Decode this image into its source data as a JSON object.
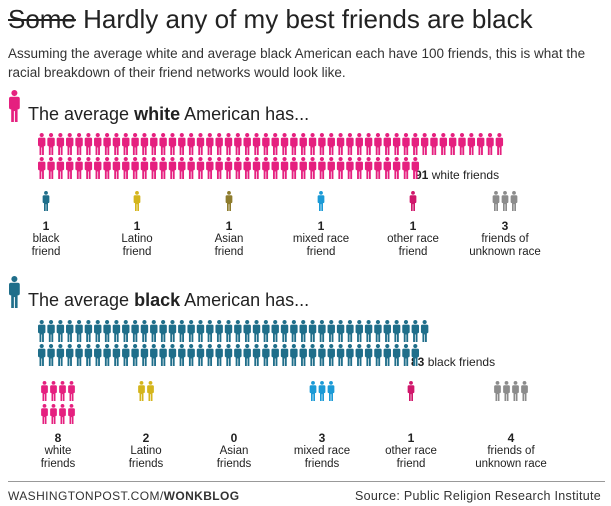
{
  "header": {
    "title_strike": "Some",
    "title_rest": "Hardly any of my best friends are black",
    "subtitle": "Assuming the average white and average black American each have 100 friends, this is what the racial breakdown of their friend networks would look like."
  },
  "colors": {
    "white": "#e5207f",
    "black": "#1f6e8a",
    "latino": "#d4b51c",
    "asian": "#8e7c2d",
    "mixed": "#1b9ad6",
    "other": "#d0176b",
    "unknown": "#8c8c8c"
  },
  "chart_data": [
    {
      "type": "pictograph",
      "title_pre": "The average ",
      "title_bold": "white",
      "title_post": " American has...",
      "main_category": "white",
      "main_value": 91,
      "main_label": "white friends",
      "categories": [
        {
          "key": "black",
          "value": 1,
          "label_1": "black",
          "label_2": "friend"
        },
        {
          "key": "latino",
          "value": 1,
          "label_1": "Latino",
          "label_2": "friend"
        },
        {
          "key": "asian",
          "value": 1,
          "label_1": "Asian",
          "label_2": "friend"
        },
        {
          "key": "mixed",
          "value": 1,
          "label_1": "mixed race",
          "label_2": "friend"
        },
        {
          "key": "other",
          "value": 1,
          "label_1": "other race",
          "label_2": "friend"
        },
        {
          "key": "unknown",
          "value": 3,
          "label_1": "friends of",
          "label_2": "unknown race"
        }
      ]
    },
    {
      "type": "pictograph",
      "title_pre": "The average ",
      "title_bold": "black",
      "title_post": " American has...",
      "main_category": "black",
      "main_value": 83,
      "main_label": "black friends",
      "categories": [
        {
          "key": "white",
          "value": 8,
          "label_1": "white",
          "label_2": "friends"
        },
        {
          "key": "latino",
          "value": 2,
          "label_1": "Latino",
          "label_2": "friends"
        },
        {
          "key": "asian",
          "value": 0,
          "label_1": "Asian",
          "label_2": "friends"
        },
        {
          "key": "mixed",
          "value": 3,
          "label_1": "mixed race",
          "label_2": "friends"
        },
        {
          "key": "other",
          "value": 1,
          "label_1": "other race",
          "label_2": "friend"
        },
        {
          "key": "unknown",
          "value": 4,
          "label_1": "friends of",
          "label_2": "unknown race"
        }
      ]
    }
  ],
  "footer": {
    "site": "WASHINGTONPOST.COM/",
    "blog": "WONKBLOG",
    "source": "Source: Public Religion Research Institute"
  }
}
